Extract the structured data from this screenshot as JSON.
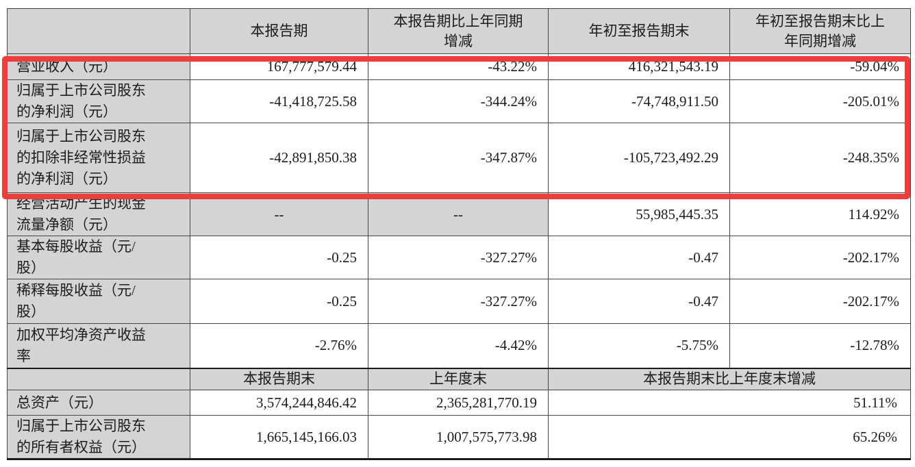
{
  "table": {
    "section_main": {
      "columns": [
        "",
        "本报告期",
        "本报告期比上年同期\n增减",
        "年初至报告期末",
        "年初至报告期末比上\n年同期增减"
      ],
      "rows": [
        {
          "label": "营业收入（元）",
          "values": [
            "167,777,579.44",
            "-43.22%",
            "416,321,543.19",
            "-59.04%"
          ]
        },
        {
          "label": "归属于上市公司股东\n的净利润（元）",
          "values": [
            "-41,418,725.58",
            "-344.24%",
            "-74,748,911.50",
            "-205.01%"
          ]
        },
        {
          "label": "归属于上市公司股东\n的扣除非经常性损益\n的净利润（元）",
          "values": [
            "-42,891,850.38",
            "-347.87%",
            "-105,723,492.29",
            "-248.35%"
          ]
        },
        {
          "label": "经营活动产生的现金\n流量净额（元）",
          "values": [
            "--",
            "--",
            "55,985,445.35",
            "114.92%"
          ]
        },
        {
          "label": "基本每股收益（元/\n股）",
          "values": [
            "-0.25",
            "-327.27%",
            "-0.47",
            "-202.17%"
          ]
        },
        {
          "label": "稀释每股收益（元/\n股）",
          "values": [
            "-0.25",
            "-327.27%",
            "-0.47",
            "-202.17%"
          ]
        },
        {
          "label": "加权平均净资产收益\n率",
          "values": [
            "-2.76%",
            "-4.42%",
            "-5.75%",
            "-12.78%"
          ]
        }
      ]
    },
    "section_balance": {
      "columns": [
        "",
        "本报告期末",
        "上年度末",
        "本报告期末比上年度末增减"
      ],
      "rows": [
        {
          "label": "总资产（元）",
          "values": [
            "3,574,244,846.42",
            "2,365,281,770.19",
            "51.11%"
          ]
        },
        {
          "label": "归属于上市公司股东\n的所有者权益（元）",
          "values": [
            "1,665,145,166.03",
            "1,007,575,773.98",
            "65.26%"
          ]
        }
      ]
    }
  },
  "annotation": {
    "type": "red-highlight-box",
    "color": "#ec3e3a",
    "covers_row_indexes": [
      0,
      1,
      2
    ]
  },
  "colors": {
    "header_bg": "#d4d4d4",
    "cell_bg": "#ffffff",
    "border": "#454545",
    "heavy_border": "#1a1a1a"
  }
}
